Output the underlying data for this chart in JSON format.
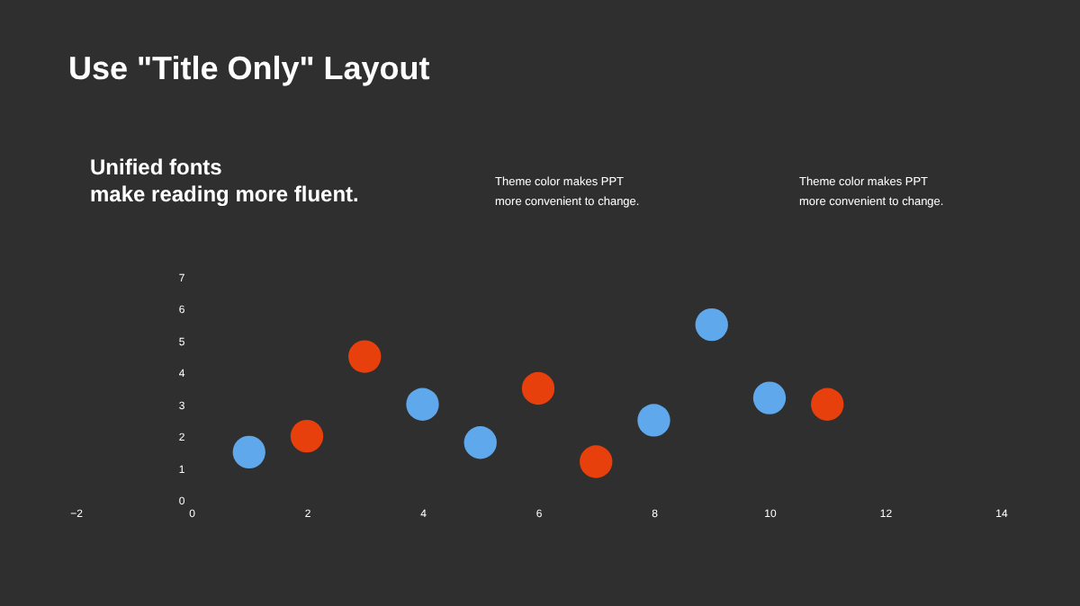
{
  "chart_data": {
    "type": "scatter",
    "title": "Use \"Title Only\" Layout",
    "annotations": [
      "Unified fonts\nmake reading more fluent.",
      "Theme  color makes PPT\nmore convenient to change.",
      "Theme  color makes PPT\nmore convenient to change."
    ],
    "series": [
      {
        "color": "#5fa8ec",
        "x": [
          1,
          4,
          5,
          8,
          9,
          10
        ],
        "values": [
          1.5,
          3,
          1.8,
          2.5,
          5.5,
          3.2
        ]
      },
      {
        "color": "#e8400c",
        "x": [
          2,
          3,
          6,
          7,
          11
        ],
        "values": [
          2,
          4.5,
          3.5,
          1.2,
          3
        ]
      }
    ],
    "xlim": [
      -2,
      14
    ],
    "xticks": [
      -2,
      0,
      2,
      4,
      6,
      8,
      10,
      12,
      14
    ],
    "ylim": [
      0,
      7
    ],
    "yticks": [
      0,
      1,
      2,
      3,
      4,
      5,
      6,
      7
    ],
    "marker": "circle"
  }
}
